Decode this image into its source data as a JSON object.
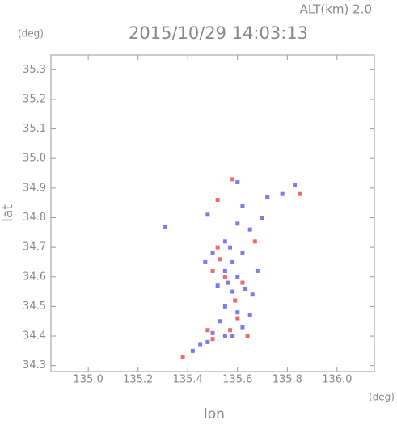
{
  "chart_data": {
    "type": "scatter",
    "title": "2015/10/29 14:03:13",
    "subtitle": "ALT(km) 2.0",
    "y_unit": "(deg)",
    "x_unit": "(deg)",
    "xlabel": "lon",
    "ylabel": "lat",
    "xlim": [
      134.85,
      136.15
    ],
    "ylim": [
      34.28,
      35.35
    ],
    "xticks": [
      {
        "value": 135,
        "label": "135.0"
      },
      135.2,
      135.4,
      135.6,
      135.8,
      {
        "value": 136,
        "label": "136.0"
      }
    ],
    "yticks": [
      34.3,
      34.4,
      34.5,
      34.6,
      34.7,
      34.8,
      34.9,
      {
        "value": 35,
        "label": "35.0"
      },
      35.1,
      35.2,
      35.3
    ],
    "series": [
      {
        "color": "#7b7bf0",
        "x": [
          135.83,
          135.78,
          135.72,
          135.62,
          135.6,
          135.65,
          135.7,
          135.48,
          135.31,
          135.55,
          135.5,
          135.47,
          135.55,
          135.6,
          135.63,
          135.58,
          135.55,
          135.6,
          135.65,
          135.62,
          135.58,
          135.55,
          135.5,
          135.45,
          135.42,
          135.56,
          135.52,
          135.58,
          135.62,
          135.66,
          135.68,
          135.48,
          135.6,
          135.57,
          135.53
        ],
        "values": [
          34.91,
          34.88,
          34.87,
          34.84,
          34.78,
          34.76,
          34.8,
          34.81,
          34.77,
          34.72,
          34.68,
          34.65,
          34.62,
          34.6,
          34.56,
          34.55,
          34.5,
          34.48,
          34.47,
          34.43,
          34.4,
          34.4,
          34.41,
          34.37,
          34.35,
          34.58,
          34.57,
          34.65,
          34.68,
          34.54,
          34.62,
          34.38,
          34.92,
          34.7,
          34.45
        ]
      },
      {
        "color": "#f06a6a",
        "x": [
          135.85,
          135.58,
          135.52,
          135.52,
          135.5,
          135.55,
          135.62,
          135.6,
          135.57,
          135.5,
          135.38,
          135.67,
          135.53,
          135.59,
          135.64,
          135.48
        ],
        "values": [
          34.88,
          34.93,
          34.86,
          34.7,
          34.62,
          34.6,
          34.58,
          34.46,
          34.42,
          34.39,
          34.33,
          34.72,
          34.66,
          34.52,
          34.4,
          34.42
        ]
      }
    ]
  }
}
